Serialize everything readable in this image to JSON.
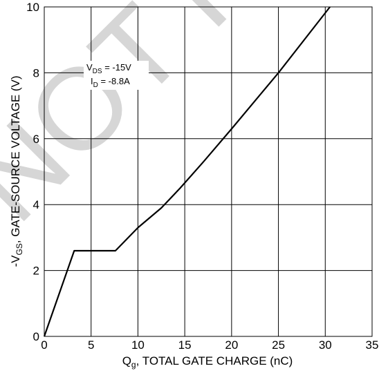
{
  "chart_data": {
    "type": "line",
    "watermark": "NOT FOR",
    "xlabel": {
      "main": "Q",
      "sub": "g",
      "rest": ", TOTAL GATE CHARGE (nC)"
    },
    "ylabel": {
      "pre": "-V",
      "sub": "GS",
      "rest": ", GATE-SOURCE VOLTAGE (V)"
    },
    "xlim": [
      0,
      35
    ],
    "ylim": [
      0,
      10
    ],
    "x_ticks": [
      0,
      5,
      10,
      15,
      20,
      25,
      30,
      35
    ],
    "y_ticks": [
      0,
      2,
      4,
      6,
      8,
      10
    ],
    "grid": true,
    "annotation": {
      "line1": {
        "main": "V",
        "sub": "DS",
        "rest": " = -15V"
      },
      "line2": {
        "main": "I",
        "sub": "D",
        "rest": " = -8.8A"
      }
    },
    "series": [
      {
        "x": [
          0,
          3.2,
          7.6,
          10.0,
          12.5,
          14.5,
          17.0,
          20.0,
          25.0,
          30.5
        ],
        "y": [
          0,
          2.6,
          2.6,
          3.3,
          3.9,
          4.5,
          5.3,
          6.3,
          8.0,
          10.0
        ]
      }
    ]
  }
}
